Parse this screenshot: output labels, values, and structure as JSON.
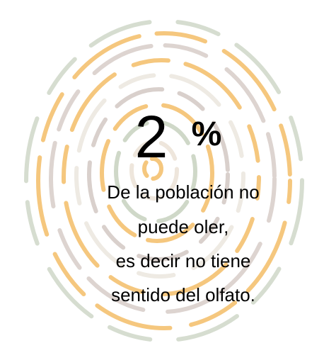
{
  "stat": {
    "number": "2",
    "symbol": "%"
  },
  "caption": [
    "De la población no",
    "puede oler,",
    "es decir no tiene",
    "sentido del olfato."
  ]
}
